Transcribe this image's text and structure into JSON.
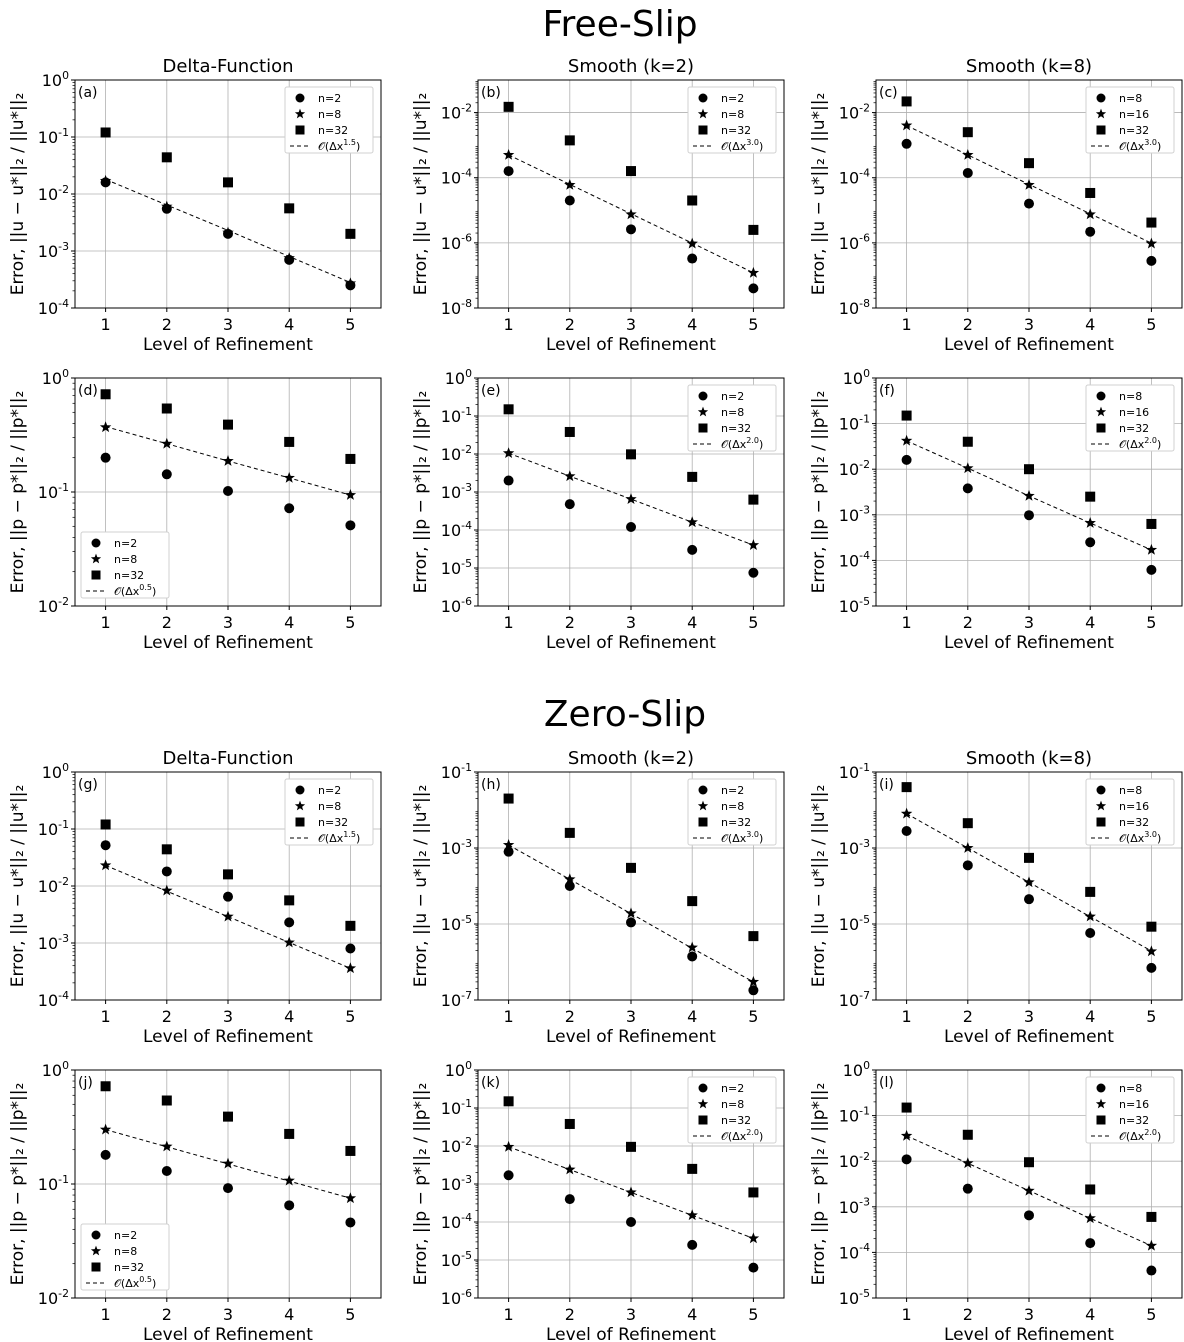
{
  "figure": {
    "section_titles": [
      "Free-Slip",
      "Zero-Slip"
    ]
  },
  "chart_data": [
    {
      "id": "a",
      "section": "Free-Slip",
      "type": "scatter",
      "yscale": "log",
      "title": "Delta-Function",
      "panel_label": "(a)",
      "xlabel": "Level of Refinement",
      "ylabel": "Error, ||u − u*||₂ / ||u*||₂",
      "ylabel_kind": "u",
      "x": [
        1,
        2,
        3,
        4,
        5
      ],
      "xlim": [
        0.5,
        5.5
      ],
      "ylim": [
        0.0001,
        1
      ],
      "y_ticks": [
        1,
        0.1,
        0.01,
        0.001,
        0.0001
      ],
      "y_tick_labels": [
        "10^0",
        "10^-1",
        "10^-2",
        "10^-3",
        "10^-4"
      ],
      "legend_position": "top-right",
      "grid": true,
      "series": [
        {
          "name": "n=2",
          "marker": "circle",
          "values": [
            0.016,
            0.0055,
            0.002,
            0.0007,
            0.00025
          ]
        },
        {
          "name": "n=8",
          "marker": "star",
          "values": [
            0.017,
            0.006,
            0.0021,
            0.00075,
            0.00027
          ]
        },
        {
          "name": "n=32",
          "marker": "square",
          "values": [
            0.12,
            0.044,
            0.016,
            0.0056,
            0.002
          ]
        }
      ],
      "reference": {
        "name": "O(Δx^1.5)",
        "base": "𝒪(Δx",
        "exponent": "1.5",
        "values": [
          0.018,
          0.0064,
          0.0023,
          0.0008,
          0.00028
        ]
      }
    },
    {
      "id": "b",
      "section": "Free-Slip",
      "type": "scatter",
      "yscale": "log",
      "title": "Smooth (k=2)",
      "panel_label": "(b)",
      "xlabel": "Level of Refinement",
      "ylabel": "Error, ||u − u*||₂ / ||u*||₂",
      "ylabel_kind": "u",
      "x": [
        1,
        2,
        3,
        4,
        5
      ],
      "xlim": [
        0.5,
        5.5
      ],
      "ylim": [
        1e-08,
        0.1
      ],
      "y_ticks": [
        0.01,
        0.0001,
        1e-06,
        1e-08
      ],
      "y_tick_labels": [
        "10^-2",
        "10^-4",
        "10^-6",
        "10^-8"
      ],
      "legend_position": "top-right",
      "grid": true,
      "series": [
        {
          "name": "n=2",
          "marker": "circle",
          "values": [
            0.00016,
            2e-05,
            2.6e-06,
            3.3e-07,
            4e-08
          ]
        },
        {
          "name": "n=8",
          "marker": "star",
          "values": [
            0.0005,
            6e-05,
            7.5e-06,
            9.5e-07,
            1.2e-07
          ]
        },
        {
          "name": "n=32",
          "marker": "square",
          "values": [
            0.015,
            0.0014,
            0.00016,
            2e-05,
            2.5e-06
          ]
        }
      ],
      "reference": {
        "name": "O(Δx^3.0)",
        "base": "𝒪(Δx",
        "exponent": "3.0",
        "values": [
          0.0005,
          6.25e-05,
          7.8e-06,
          9.8e-07,
          1.2e-07
        ]
      }
    },
    {
      "id": "c",
      "section": "Free-Slip",
      "type": "scatter",
      "yscale": "log",
      "title": "Smooth (k=8)",
      "panel_label": "(c)",
      "xlabel": "Level of Refinement",
      "ylabel": "Error, ||u − u*||₂ / ||u*||₂",
      "ylabel_kind": "u",
      "x": [
        1,
        2,
        3,
        4,
        5
      ],
      "xlim": [
        0.5,
        5.5
      ],
      "ylim": [
        1e-08,
        0.1
      ],
      "y_ticks": [
        0.01,
        0.0001,
        1e-06,
        1e-08
      ],
      "y_tick_labels": [
        "10^-2",
        "10^-4",
        "10^-6",
        "10^-8"
      ],
      "legend_position": "top-right",
      "grid": true,
      "series": [
        {
          "name": "n=8",
          "marker": "circle",
          "values": [
            0.0011,
            0.00014,
            1.6e-05,
            2.2e-06,
            2.8e-07
          ]
        },
        {
          "name": "n=16",
          "marker": "star",
          "values": [
            0.004,
            0.0005,
            6e-05,
            7.5e-06,
            9.5e-07
          ]
        },
        {
          "name": "n=32",
          "marker": "square",
          "values": [
            0.022,
            0.0025,
            0.00028,
            3.4e-05,
            4.2e-06
          ]
        }
      ],
      "reference": {
        "name": "O(Δx^3.0)",
        "base": "𝒪(Δx",
        "exponent": "3.0",
        "values": [
          0.004,
          0.0005,
          6.25e-05,
          7.8e-06,
          9.8e-07
        ]
      }
    },
    {
      "id": "d",
      "section": "Free-Slip",
      "type": "scatter",
      "yscale": "log",
      "title": "",
      "panel_label": "(d)",
      "xlabel": "Level of Refinement",
      "ylabel": "Error, ||p − p*||₂ / ||p*||₂",
      "ylabel_kind": "p",
      "x": [
        1,
        2,
        3,
        4,
        5
      ],
      "xlim": [
        0.5,
        5.5
      ],
      "ylim": [
        0.01,
        1
      ],
      "y_ticks": [
        1,
        0.1,
        0.01
      ],
      "y_tick_labels": [
        "10^0",
        "10^-1",
        "10^-2"
      ],
      "legend_position": "bottom-left",
      "grid": true,
      "series": [
        {
          "name": "n=2",
          "marker": "circle",
          "values": [
            0.2,
            0.143,
            0.102,
            0.072,
            0.051
          ]
        },
        {
          "name": "n=8",
          "marker": "star",
          "values": [
            0.37,
            0.265,
            0.187,
            0.133,
            0.094
          ]
        },
        {
          "name": "n=32",
          "marker": "square",
          "values": [
            0.72,
            0.54,
            0.39,
            0.275,
            0.195
          ]
        }
      ],
      "reference": {
        "name": "O(Δx^0.5)",
        "base": "𝒪(Δx",
        "exponent": "0.5",
        "values": [
          0.375,
          0.265,
          0.187,
          0.133,
          0.094
        ]
      }
    },
    {
      "id": "e",
      "section": "Free-Slip",
      "type": "scatter",
      "yscale": "log",
      "title": "",
      "panel_label": "(e)",
      "xlabel": "Level of Refinement",
      "ylabel": "Error, ||p − p*||₂ / ||p*||₂",
      "ylabel_kind": "p",
      "x": [
        1,
        2,
        3,
        4,
        5
      ],
      "xlim": [
        0.5,
        5.5
      ],
      "ylim": [
        1e-06,
        1
      ],
      "y_ticks": [
        1,
        0.1,
        0.01,
        0.001,
        0.0001,
        1e-05,
        1e-06
      ],
      "y_tick_labels": [
        "10^0",
        "10^-1",
        "10^-2",
        "10^-3",
        "10^-4",
        "10^-5",
        "10^-6"
      ],
      "legend_position": "top-right",
      "grid": true,
      "series": [
        {
          "name": "n=2",
          "marker": "circle",
          "values": [
            0.002,
            0.00048,
            0.00012,
            3e-05,
            7.5e-06
          ]
        },
        {
          "name": "n=8",
          "marker": "star",
          "values": [
            0.0105,
            0.0026,
            0.00065,
            0.00016,
            4e-05
          ]
        },
        {
          "name": "n=32",
          "marker": "square",
          "values": [
            0.15,
            0.038,
            0.0098,
            0.0025,
            0.00063
          ]
        }
      ],
      "reference": {
        "name": "O(Δx^2.0)",
        "base": "𝒪(Δx",
        "exponent": "2.0",
        "values": [
          0.0105,
          0.0026,
          0.00065,
          0.00016,
          4e-05
        ]
      }
    },
    {
      "id": "f",
      "section": "Free-Slip",
      "type": "scatter",
      "yscale": "log",
      "title": "",
      "panel_label": "(f)",
      "xlabel": "Level of Refinement",
      "ylabel": "Error, ||p − p*||₂ / ||p*||₂",
      "ylabel_kind": "p",
      "x": [
        1,
        2,
        3,
        4,
        5
      ],
      "xlim": [
        0.5,
        5.5
      ],
      "ylim": [
        1e-05,
        1
      ],
      "y_ticks": [
        1,
        0.1,
        0.01,
        0.001,
        0.0001,
        1e-05
      ],
      "y_tick_labels": [
        "10^0",
        "10^-1",
        "10^-2",
        "10^-3",
        "10^-4",
        "10^-5"
      ],
      "legend_position": "top-right",
      "grid": true,
      "series": [
        {
          "name": "n=8",
          "marker": "circle",
          "values": [
            0.016,
            0.0038,
            0.00098,
            0.00025,
            6.2e-05
          ]
        },
        {
          "name": "n=16",
          "marker": "star",
          "values": [
            0.042,
            0.0105,
            0.0026,
            0.00066,
            0.00017
          ]
        },
        {
          "name": "n=32",
          "marker": "square",
          "values": [
            0.15,
            0.04,
            0.01,
            0.0025,
            0.00063
          ]
        }
      ],
      "reference": {
        "name": "O(Δx^2.0)",
        "base": "𝒪(Δx",
        "exponent": "2.0",
        "values": [
          0.042,
          0.0105,
          0.0026,
          0.00066,
          0.00017
        ]
      }
    },
    {
      "id": "g",
      "section": "Zero-Slip",
      "type": "scatter",
      "yscale": "log",
      "title": "Delta-Function",
      "panel_label": "(g)",
      "xlabel": "Level of Refinement",
      "ylabel": "Error, ||u − u*||₂ / ||u*||₂",
      "ylabel_kind": "u",
      "x": [
        1,
        2,
        3,
        4,
        5
      ],
      "xlim": [
        0.5,
        5.5
      ],
      "ylim": [
        0.0001,
        1
      ],
      "y_ticks": [
        1,
        0.1,
        0.01,
        0.001,
        0.0001
      ],
      "y_tick_labels": [
        "10^0",
        "10^-1",
        "10^-2",
        "10^-3",
        "10^-4"
      ],
      "legend_position": "top-right",
      "grid": true,
      "series": [
        {
          "name": "n=2",
          "marker": "circle",
          "values": [
            0.052,
            0.018,
            0.0065,
            0.0023,
            0.0008
          ]
        },
        {
          "name": "n=8",
          "marker": "star",
          "values": [
            0.023,
            0.0083,
            0.0029,
            0.00102,
            0.00036
          ]
        },
        {
          "name": "n=32",
          "marker": "square",
          "values": [
            0.12,
            0.044,
            0.016,
            0.0056,
            0.002
          ]
        }
      ],
      "reference": {
        "name": "O(Δx^1.5)",
        "base": "𝒪(Δx",
        "exponent": "1.5",
        "values": [
          0.023,
          0.0081,
          0.0029,
          0.00102,
          0.00036
        ]
      }
    },
    {
      "id": "h",
      "section": "Zero-Slip",
      "type": "scatter",
      "yscale": "log",
      "title": "Smooth (k=2)",
      "panel_label": "(h)",
      "xlabel": "Level of Refinement",
      "ylabel": "Error, ||u − u*||₂ / ||u*||₂",
      "ylabel_kind": "u",
      "x": [
        1,
        2,
        3,
        4,
        5
      ],
      "xlim": [
        0.5,
        5.5
      ],
      "ylim": [
        1e-07,
        0.1
      ],
      "y_ticks": [
        0.1,
        0.001,
        1e-05,
        1e-07
      ],
      "y_tick_labels": [
        "10^-1",
        "10^-3",
        "10^-5",
        "10^-7"
      ],
      "legend_position": "top-right",
      "grid": true,
      "series": [
        {
          "name": "n=2",
          "marker": "circle",
          "values": [
            0.0008,
            0.0001,
            1.1e-05,
            1.4e-06,
            1.8e-07
          ]
        },
        {
          "name": "n=8",
          "marker": "star",
          "values": [
            0.0012,
            0.00015,
            1.9e-05,
            2.4e-06,
            3e-07
          ]
        },
        {
          "name": "n=32",
          "marker": "square",
          "values": [
            0.02,
            0.0025,
            0.0003,
            4e-05,
            4.8e-06
          ]
        }
      ],
      "reference": {
        "name": "O(Δx^3.0)",
        "base": "𝒪(Δx",
        "exponent": "3.0",
        "values": [
          0.0012,
          0.00015,
          1.88e-05,
          2.3e-06,
          3e-07
        ]
      }
    },
    {
      "id": "i",
      "section": "Zero-Slip",
      "type": "scatter",
      "yscale": "log",
      "title": "Smooth (k=8)",
      "panel_label": "(i)",
      "xlabel": "Level of Refinement",
      "ylabel": "Error, ||u − u*||₂ / ||u*||₂",
      "ylabel_kind": "u",
      "x": [
        1,
        2,
        3,
        4,
        5
      ],
      "xlim": [
        0.5,
        5.5
      ],
      "ylim": [
        1e-07,
        0.1
      ],
      "y_ticks": [
        0.1,
        0.001,
        1e-05,
        1e-07
      ],
      "y_tick_labels": [
        "10^-1",
        "10^-3",
        "10^-5",
        "10^-7"
      ],
      "legend_position": "top-right",
      "grid": true,
      "series": [
        {
          "name": "n=8",
          "marker": "circle",
          "values": [
            0.0028,
            0.00035,
            4.5e-05,
            5.8e-06,
            7e-07
          ]
        },
        {
          "name": "n=16",
          "marker": "star",
          "values": [
            0.008,
            0.001,
            0.000125,
            1.57e-05,
            1.9e-06
          ]
        },
        {
          "name": "n=32",
          "marker": "square",
          "values": [
            0.04,
            0.0045,
            0.00055,
            7e-05,
            8.5e-06
          ]
        }
      ],
      "reference": {
        "name": "O(Δx^3.0)",
        "base": "𝒪(Δx",
        "exponent": "3.0",
        "values": [
          0.008,
          0.001,
          0.000125,
          1.56e-05,
          1.95e-06
        ]
      }
    },
    {
      "id": "j",
      "section": "Zero-Slip",
      "type": "scatter",
      "yscale": "log",
      "title": "",
      "panel_label": "(j)",
      "xlabel": "Level of Refinement",
      "ylabel": "Error, ||p − p*||₂ / ||p*||₂",
      "ylabel_kind": "p",
      "x": [
        1,
        2,
        3,
        4,
        5
      ],
      "xlim": [
        0.5,
        5.5
      ],
      "ylim": [
        0.01,
        1
      ],
      "y_ticks": [
        1,
        0.1,
        0.01
      ],
      "y_tick_labels": [
        "10^0",
        "10^-1",
        "10^-2"
      ],
      "legend_position": "bottom-left",
      "grid": true,
      "series": [
        {
          "name": "n=2",
          "marker": "circle",
          "values": [
            0.18,
            0.13,
            0.092,
            0.065,
            0.046
          ]
        },
        {
          "name": "n=8",
          "marker": "star",
          "values": [
            0.3,
            0.213,
            0.151,
            0.107,
            0.075
          ]
        },
        {
          "name": "n=32",
          "marker": "square",
          "values": [
            0.72,
            0.54,
            0.39,
            0.275,
            0.195
          ]
        }
      ],
      "reference": {
        "name": "O(Δx^0.5)",
        "base": "𝒪(Δx",
        "exponent": "0.5",
        "values": [
          0.3,
          0.212,
          0.15,
          0.106,
          0.075
        ]
      }
    },
    {
      "id": "k",
      "section": "Zero-Slip",
      "type": "scatter",
      "yscale": "log",
      "title": "",
      "panel_label": "(k)",
      "xlabel": "Level of Refinement",
      "ylabel": "Error, ||p − p*||₂ / ||p*||₂",
      "ylabel_kind": "p",
      "x": [
        1,
        2,
        3,
        4,
        5
      ],
      "xlim": [
        0.5,
        5.5
      ],
      "ylim": [
        1e-06,
        1
      ],
      "y_ticks": [
        1,
        0.1,
        0.01,
        0.001,
        0.0001,
        1e-05,
        1e-06
      ],
      "y_tick_labels": [
        "10^0",
        "10^-1",
        "10^-2",
        "10^-3",
        "10^-4",
        "10^-5",
        "10^-6"
      ],
      "legend_position": "top-right",
      "grid": true,
      "series": [
        {
          "name": "n=2",
          "marker": "circle",
          "values": [
            0.0017,
            0.0004,
            0.0001,
            2.5e-05,
            6.3e-06
          ]
        },
        {
          "name": "n=8",
          "marker": "star",
          "values": [
            0.0095,
            0.0024,
            0.0006,
            0.00015,
            3.7e-05
          ]
        },
        {
          "name": "n=32",
          "marker": "square",
          "values": [
            0.15,
            0.038,
            0.0095,
            0.0025,
            0.0006
          ]
        }
      ],
      "reference": {
        "name": "O(Δx^2.0)",
        "base": "𝒪(Δx",
        "exponent": "2.0",
        "values": [
          0.0095,
          0.0024,
          0.0006,
          0.00015,
          3.7e-05
        ]
      }
    },
    {
      "id": "l",
      "section": "Zero-Slip",
      "type": "scatter",
      "yscale": "log",
      "title": "",
      "panel_label": "(l)",
      "xlabel": "Level of Refinement",
      "ylabel": "Error, ||p − p*||₂ / ||p*||₂",
      "ylabel_kind": "p",
      "x": [
        1,
        2,
        3,
        4,
        5
      ],
      "xlim": [
        0.5,
        5.5
      ],
      "ylim": [
        1e-05,
        1
      ],
      "y_ticks": [
        1,
        0.1,
        0.01,
        0.001,
        0.0001,
        1e-05
      ],
      "y_tick_labels": [
        "10^0",
        "10^-1",
        "10^-2",
        "10^-3",
        "10^-4",
        "10^-5"
      ],
      "legend_position": "top-right",
      "grid": true,
      "series": [
        {
          "name": "n=8",
          "marker": "circle",
          "values": [
            0.011,
            0.0025,
            0.00065,
            0.00016,
            4e-05
          ]
        },
        {
          "name": "n=16",
          "marker": "star",
          "values": [
            0.036,
            0.009,
            0.00225,
            0.00056,
            0.00014
          ]
        },
        {
          "name": "n=32",
          "marker": "square",
          "values": [
            0.15,
            0.038,
            0.0095,
            0.0024,
            0.0006
          ]
        }
      ],
      "reference": {
        "name": "O(Δx^2.0)",
        "base": "𝒪(Δx",
        "exponent": "2.0",
        "values": [
          0.036,
          0.009,
          0.00225,
          0.00056,
          0.00014
        ]
      }
    }
  ]
}
